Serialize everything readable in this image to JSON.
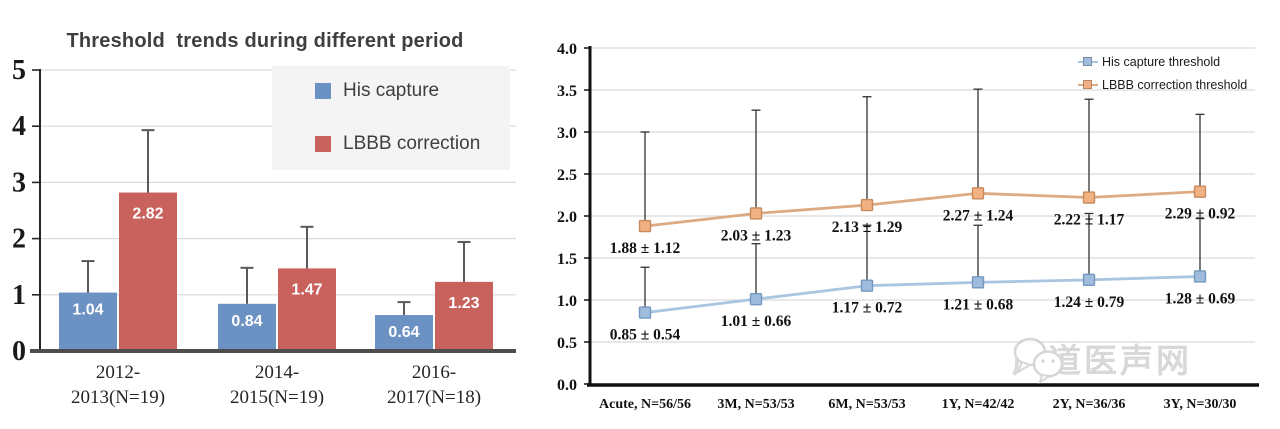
{
  "page": {
    "background": "#ffffff"
  },
  "watermark": {
    "icon": "chat-bubbles-icon",
    "text": "严道医声网",
    "color": "#cccccc"
  },
  "chart_data": [
    {
      "type": "bar",
      "title": "Threshold  trends during different period",
      "categories": [
        [
          "2012-",
          "2013(N=19)"
        ],
        [
          "2014-",
          "2015(N=19)"
        ],
        [
          "2016-",
          "2017(N=18)"
        ]
      ],
      "series": [
        {
          "name": "His capture",
          "color": "#6c92c4",
          "values": [
            1.04,
            0.84,
            0.64
          ],
          "error_top": [
            1.6,
            1.48,
            0.87
          ]
        },
        {
          "name": "LBBB correction",
          "color": "#c9615d",
          "values": [
            2.82,
            1.47,
            1.23
          ],
          "error_top": [
            3.93,
            2.21,
            1.94
          ]
        }
      ],
      "value_labels": [
        [
          "1.04",
          "0.84",
          "0.64"
        ],
        [
          "2.82",
          "1.47",
          "1.23"
        ]
      ],
      "y_ticks": [
        "0",
        "1",
        "2",
        "3",
        "4",
        "5"
      ],
      "ylim": [
        0,
        5
      ],
      "grid": true,
      "legend_position": "top-right",
      "error_bars": "upper"
    },
    {
      "type": "line",
      "title": "",
      "categories": [
        "Acute, N=56/56",
        "3M, N=53/53",
        "6M, N=53/53",
        "1Y, N=42/42",
        "2Y, N=36/36",
        "3Y, N=30/30"
      ],
      "series": [
        {
          "name": "His capture threshold",
          "line_color": "#a9c5e2",
          "marker_color": "#9fbcdd",
          "marker_border": "#7498bf",
          "values": [
            0.85,
            1.01,
            1.17,
            1.21,
            1.24,
            1.28
          ],
          "sd": [
            0.54,
            0.66,
            0.72,
            0.68,
            0.79,
            0.69
          ],
          "labels": [
            "0.85 ± 0.54",
            "1.01 ± 0.66",
            "1.17 ± 0.72",
            "1.21 ± 0.68",
            "1.24 ± 0.79",
            "1.28 ± 0.69"
          ]
        },
        {
          "name": "LBBB correction threshold",
          "line_color": "#dcab83",
          "marker_color": "#f2b183",
          "marker_border": "#c68a5c",
          "values": [
            1.88,
            2.03,
            2.13,
            2.27,
            2.22,
            2.29
          ],
          "sd": [
            1.12,
            1.23,
            1.29,
            1.24,
            1.17,
            0.92
          ],
          "labels": [
            "1.88 ± 1.12",
            "2.03 ± 1.23",
            "2.13 ± 1.29",
            "2.27 ± 1.24",
            "2.22 ± 1.17",
            "2.29 ± 0.92"
          ]
        }
      ],
      "y_ticks": [
        "0.0",
        "0.5",
        "1.0",
        "1.5",
        "2.0",
        "2.5",
        "3.0",
        "3.5",
        "4.0"
      ],
      "ylim": [
        0,
        4
      ],
      "grid": true,
      "legend_position": "top-right",
      "error_bars": "upper"
    }
  ],
  "colors": {
    "gridline": "#d9d9d9",
    "axis_dark": "#262626",
    "error_bar_left": "#595959",
    "error_bar_right": "#333333",
    "title_text": "#3f3f3f"
  }
}
